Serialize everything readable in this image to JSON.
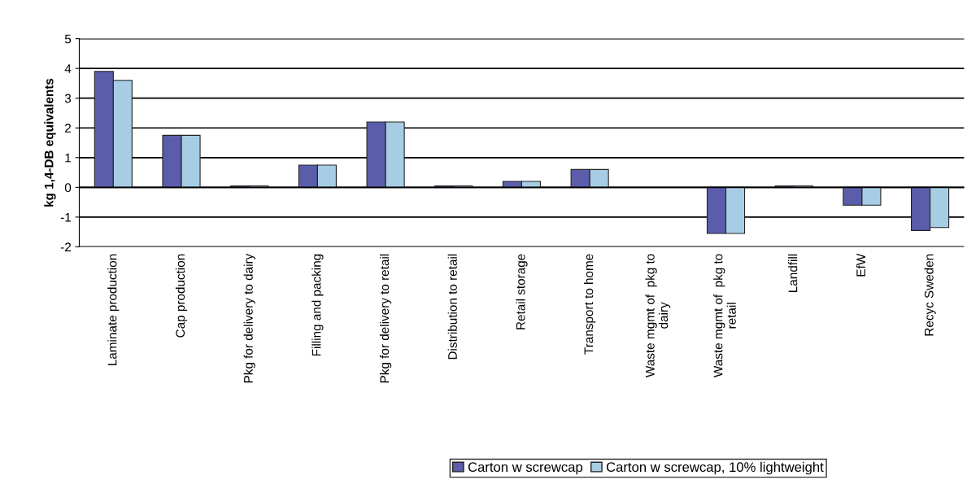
{
  "chart_data": {
    "type": "bar",
    "ylabel": "kg 1,4-DB equivalents",
    "categories": [
      "Laminate production",
      "Cap production",
      "Pkg for delivery to dairy",
      "Filling and packing",
      "Pkg for delivery to retail",
      "Distribution to retail",
      "Retail storage",
      "Transport to home",
      "Waste mgmt of  pkg to\ndairy",
      "Waste mgmt of  pkg to\nretail",
      "Landfill",
      "EfW",
      "Recyc Sweden"
    ],
    "series": [
      {
        "name": "Carton w screwcap",
        "color": "#5b5dab",
        "values": [
          3.9,
          1.75,
          0.05,
          0.75,
          2.2,
          0.05,
          0.2,
          0.6,
          null,
          -1.55,
          0.05,
          -0.6,
          -1.45
        ]
      },
      {
        "name": "Carton w screwcap, 10% lightweight",
        "color": "#a6cde3",
        "values": [
          3.6,
          1.75,
          0.05,
          0.75,
          2.2,
          0.05,
          0.2,
          0.6,
          null,
          -1.55,
          0.05,
          -0.6,
          -1.35
        ]
      }
    ],
    "ylim": [
      -2,
      5
    ],
    "yticks": [
      -2,
      -1,
      0,
      1,
      2,
      3,
      4,
      5
    ],
    "grid": "y",
    "legend": "bottom"
  }
}
